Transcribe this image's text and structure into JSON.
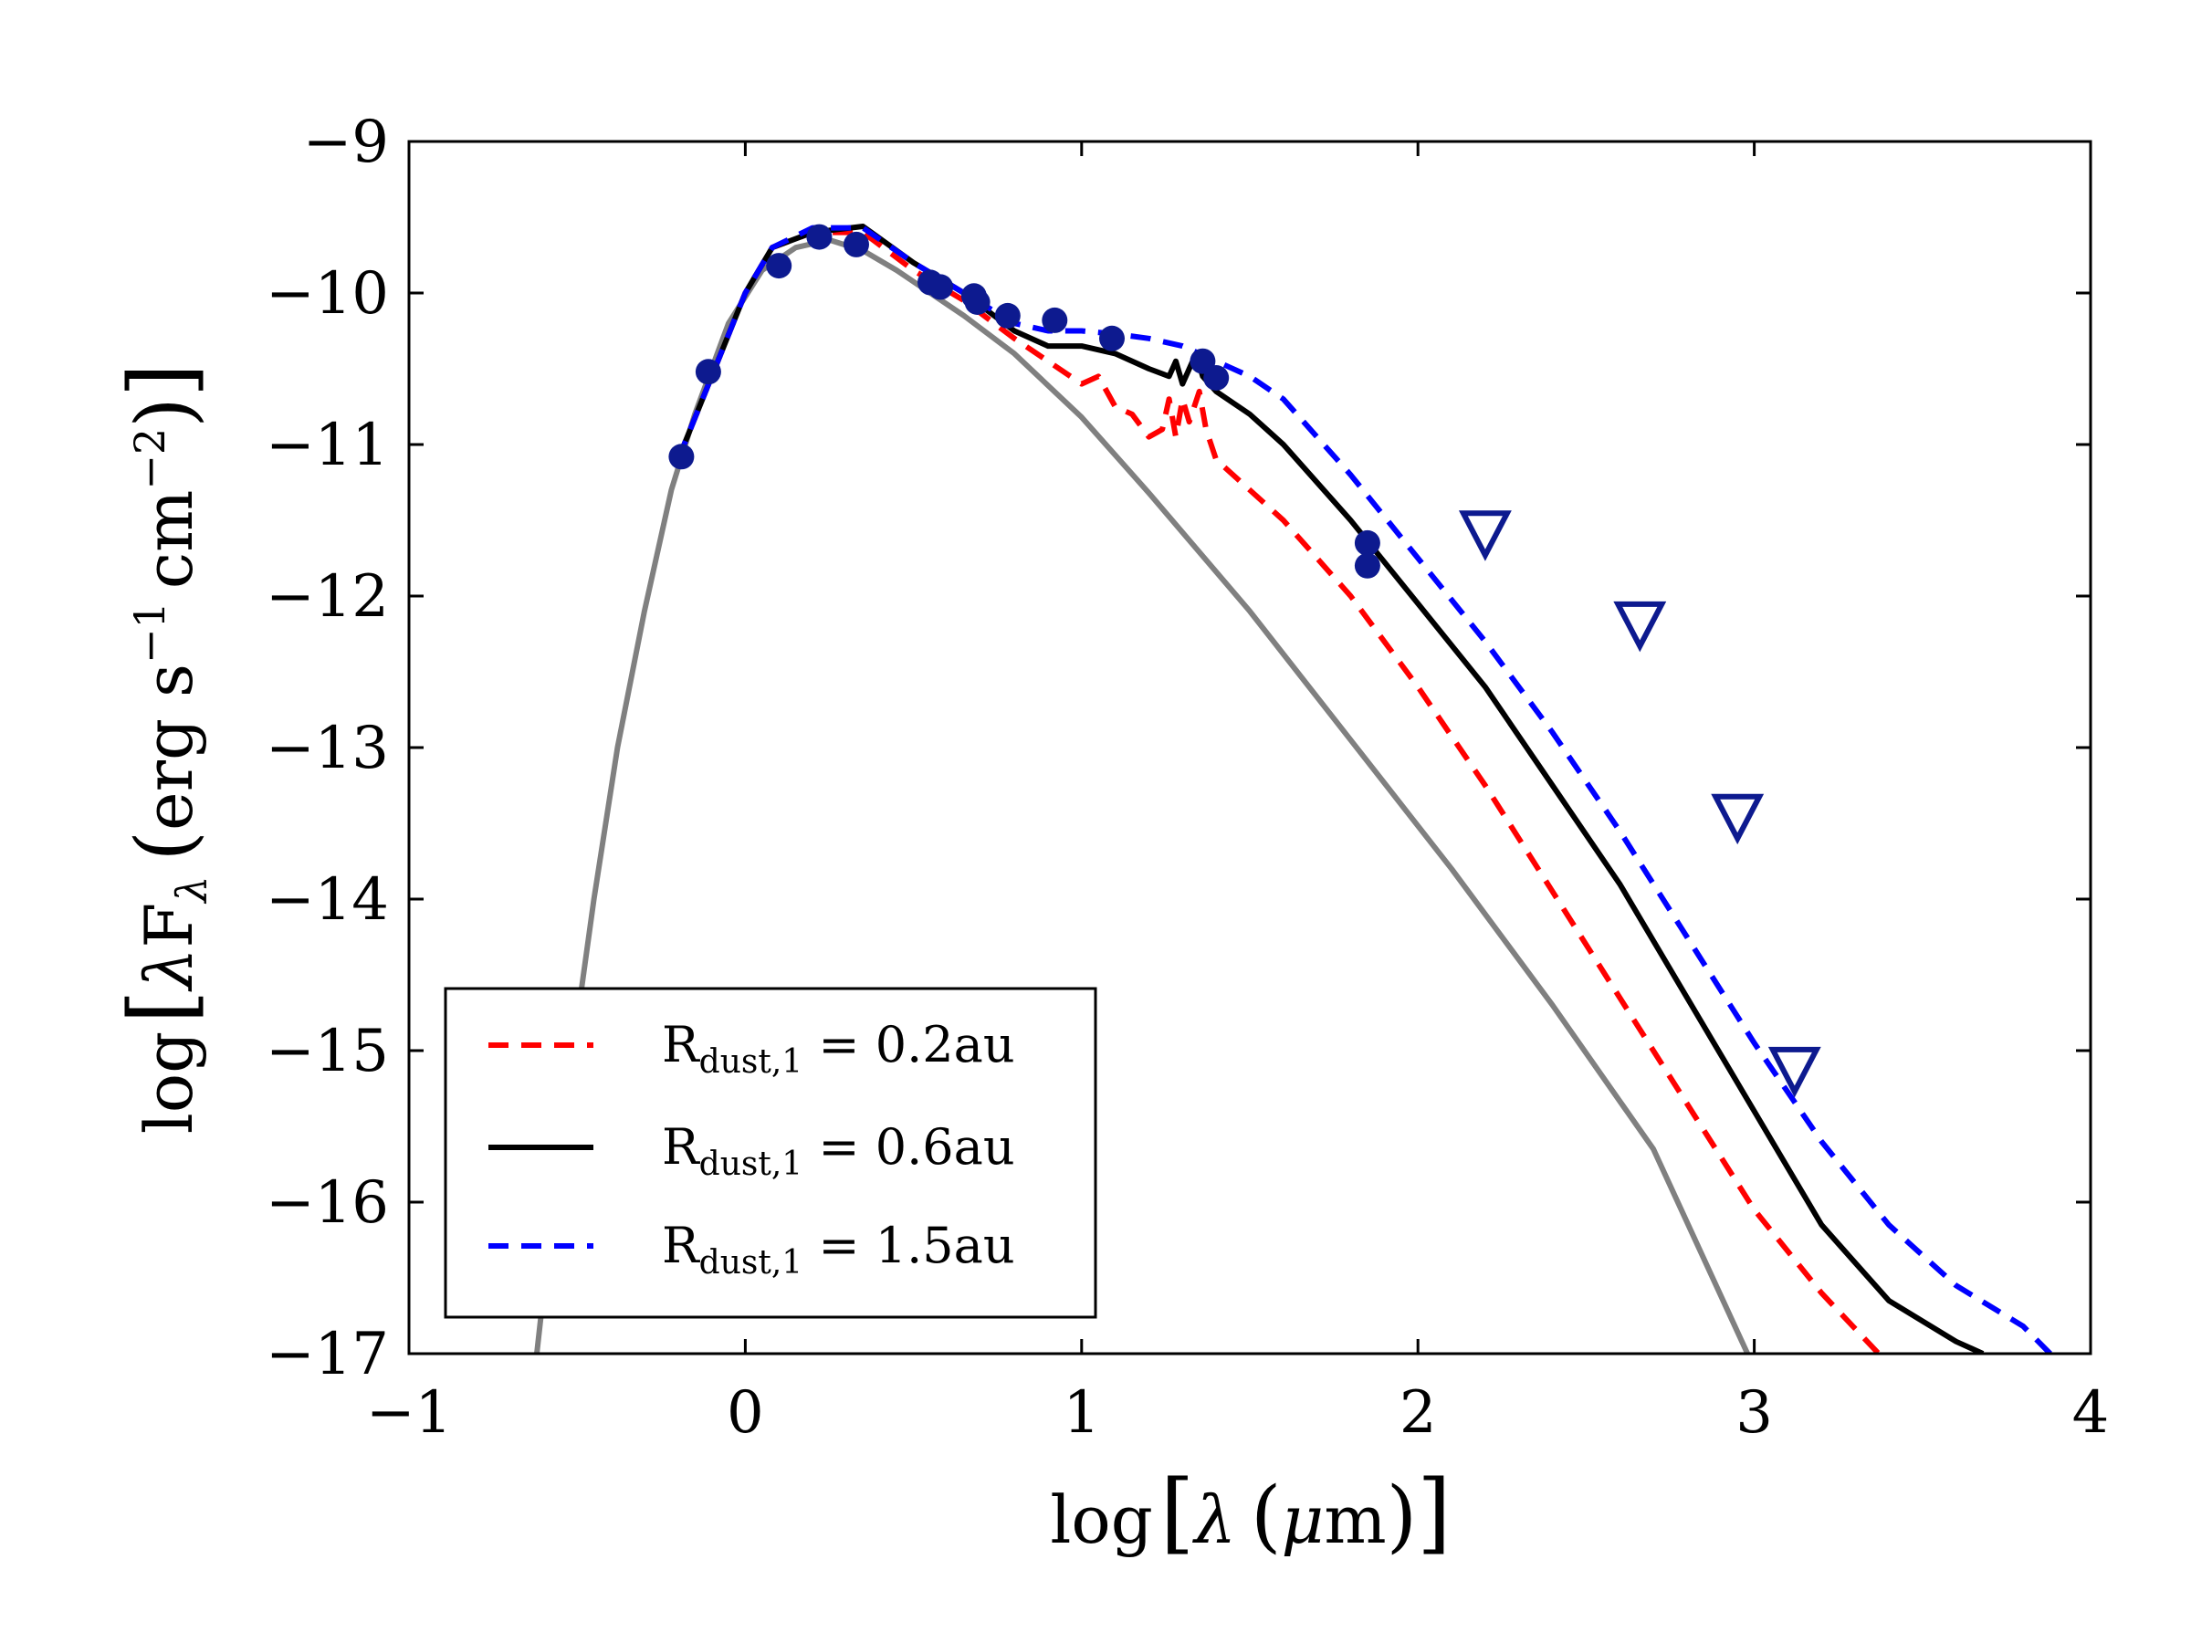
{
  "chart_data": {
    "type": "line",
    "title": "",
    "xlabel": "log[λ (μm)]",
    "ylabel": "log[λF_λ (erg s^-1 cm^-2)]",
    "xlim": [
      -1,
      4
    ],
    "ylim": [
      -17,
      -9
    ],
    "xticks": [
      -1,
      0,
      1,
      2,
      3,
      4
    ],
    "yticks": [
      -17,
      -16,
      -15,
      -14,
      -13,
      -12,
      -11,
      -10,
      -9
    ],
    "tick_labels": {
      "x": [
        "−1",
        "0",
        "1",
        "2",
        "3",
        "4"
      ],
      "y": [
        "−17",
        "−16",
        "−15",
        "−14",
        "−13",
        "−12",
        "−11",
        "−10",
        "−9"
      ]
    },
    "axis_label_text": {
      "x": {
        "prefix": "log",
        "symbol": "λ",
        "unit": "μ",
        "unit_tail": "m"
      },
      "y": {
        "prefix": "log",
        "lambda": "λ",
        "F": "F",
        "sub": "λ",
        "unit": "erg s",
        "exp1": "−1",
        "cm": "cm",
        "exp2": "−2"
      }
    },
    "grid": false,
    "legend_position": "lower-left",
    "series": [
      {
        "name": "stellar_photosphere",
        "label": "",
        "color": "#808080",
        "style": "solid",
        "x": [
          -0.62,
          -0.55,
          -0.5,
          -0.45,
          -0.38,
          -0.3,
          -0.22,
          -0.15,
          -0.05,
          0.05,
          0.15,
          0.25,
          0.35,
          0.45,
          0.55,
          0.65,
          0.8,
          1.0,
          1.2,
          1.5,
          1.8,
          2.1,
          2.4,
          2.7,
          2.98
        ],
        "y": [
          -17.0,
          -15.6,
          -14.8,
          -14.0,
          -13.0,
          -12.1,
          -11.3,
          -10.8,
          -10.2,
          -9.85,
          -9.7,
          -9.65,
          -9.72,
          -9.85,
          -10.0,
          -10.15,
          -10.4,
          -10.82,
          -11.32,
          -12.1,
          -12.95,
          -13.8,
          -14.7,
          -15.65,
          -17.0
        ]
      },
      {
        "name": "model_r02",
        "label": "R_dust,1 = 0.2au",
        "color": "#ff0000",
        "style": "dashed",
        "x": [
          -0.2,
          -0.1,
          0.0,
          0.08,
          0.2,
          0.35,
          0.5,
          0.65,
          0.8,
          0.9,
          1.0,
          1.05,
          1.1,
          1.15,
          1.2,
          1.24,
          1.26,
          1.28,
          1.3,
          1.32,
          1.35,
          1.37,
          1.4,
          1.5,
          1.6,
          1.8,
          2.0,
          2.2,
          2.4,
          2.6,
          2.8,
          3.0,
          3.2,
          3.37
        ],
        "y": [
          -11.1,
          -10.55,
          -10.0,
          -9.7,
          -9.6,
          -9.6,
          -9.85,
          -10.05,
          -10.3,
          -10.45,
          -10.6,
          -10.55,
          -10.75,
          -10.8,
          -10.95,
          -10.9,
          -10.7,
          -10.95,
          -10.7,
          -10.85,
          -10.65,
          -10.9,
          -11.1,
          -11.3,
          -11.5,
          -12.0,
          -12.6,
          -13.25,
          -13.95,
          -14.65,
          -15.35,
          -16.05,
          -16.6,
          -17.0
        ]
      },
      {
        "name": "model_r06",
        "label": "R_dust,1 = 0.6au",
        "color": "#000000",
        "style": "solid",
        "x": [
          -0.2,
          -0.1,
          0.0,
          0.08,
          0.2,
          0.35,
          0.5,
          0.65,
          0.8,
          0.9,
          1.0,
          1.1,
          1.2,
          1.26,
          1.28,
          1.3,
          1.32,
          1.34,
          1.36,
          1.4,
          1.5,
          1.6,
          1.8,
          2.0,
          2.2,
          2.4,
          2.6,
          2.8,
          3.0,
          3.2,
          3.4,
          3.6,
          3.68
        ],
        "y": [
          -11.1,
          -10.55,
          -10.0,
          -9.7,
          -9.6,
          -9.56,
          -9.8,
          -10.0,
          -10.25,
          -10.35,
          -10.35,
          -10.4,
          -10.5,
          -10.55,
          -10.45,
          -10.6,
          -10.5,
          -10.4,
          -10.55,
          -10.65,
          -10.8,
          -11.0,
          -11.5,
          -12.05,
          -12.6,
          -13.25,
          -13.9,
          -14.65,
          -15.4,
          -16.15,
          -16.65,
          -16.92,
          -17.0
        ]
      },
      {
        "name": "model_r15",
        "label": "R_dust,1 = 1.5au",
        "color": "#0000ff",
        "style": "dashed",
        "x": [
          -0.2,
          -0.1,
          0.0,
          0.08,
          0.2,
          0.35,
          0.5,
          0.65,
          0.8,
          0.9,
          1.0,
          1.1,
          1.2,
          1.3,
          1.4,
          1.5,
          1.6,
          1.8,
          2.0,
          2.2,
          2.4,
          2.6,
          2.8,
          3.0,
          3.2,
          3.4,
          3.6,
          3.8,
          3.88
        ],
        "y": [
          -11.1,
          -10.55,
          -10.0,
          -9.7,
          -9.57,
          -9.57,
          -9.8,
          -10.0,
          -10.2,
          -10.25,
          -10.25,
          -10.27,
          -10.3,
          -10.35,
          -10.45,
          -10.55,
          -10.7,
          -11.2,
          -11.75,
          -12.3,
          -12.9,
          -13.55,
          -14.25,
          -14.95,
          -15.6,
          -16.15,
          -16.55,
          -16.82,
          -17.0
        ]
      }
    ],
    "scatter": {
      "name": "photometry",
      "color": "#0d1a8f",
      "x": [
        -0.19,
        -0.11,
        0.1,
        0.22,
        0.33,
        0.55,
        0.58,
        0.68,
        0.69,
        0.78,
        0.92,
        1.09,
        1.36,
        1.4,
        1.85,
        1.85
      ],
      "y": [
        -11.08,
        -10.52,
        -9.82,
        -9.63,
        -9.68,
        -9.93,
        -9.96,
        -10.02,
        -10.06,
        -10.15,
        -10.18,
        -10.3,
        -10.45,
        -10.56,
        -11.65,
        -11.8
      ]
    },
    "upper_limits": {
      "name": "upper_limits",
      "color": "#0d1a8f",
      "x": [
        2.2,
        2.66,
        2.95,
        3.12
      ],
      "y": [
        -11.58,
        -12.18,
        -13.45,
        -15.12
      ]
    },
    "legend": [
      {
        "series": "model_r02",
        "label_main": "R",
        "label_sub": "dust,1",
        "label_rest": " = 0.2au"
      },
      {
        "series": "model_r06",
        "label_main": "R",
        "label_sub": "dust,1",
        "label_rest": " = 0.6au"
      },
      {
        "series": "model_r15",
        "label_main": "R",
        "label_sub": "dust,1",
        "label_rest": " = 1.5au"
      }
    ]
  }
}
